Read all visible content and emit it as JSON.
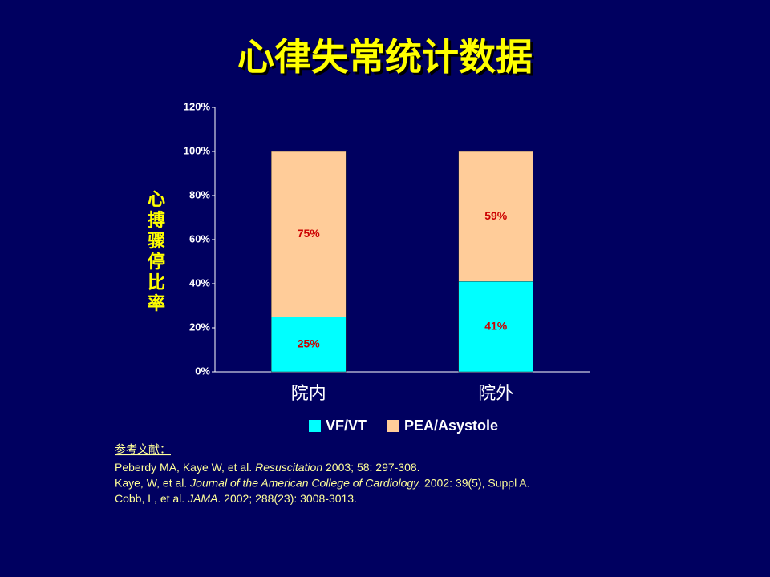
{
  "chart_data": {
    "type": "stacked_bar",
    "title": "心律失常统计数据",
    "ylabel": "心搏骤停比率",
    "categories": [
      "院内",
      "院外"
    ],
    "series": [
      {
        "name": "VF/VT",
        "color": "#00ffff",
        "values": [
          25,
          41
        ],
        "value_labels": [
          "25%",
          "41%"
        ]
      },
      {
        "name": "PEA/Asystole",
        "color": "#ffcc99",
        "values": [
          75,
          59
        ],
        "value_labels": [
          "75%",
          "59%"
        ]
      }
    ],
    "ylim": [
      0,
      120
    ],
    "yticks": [
      {
        "value": 0,
        "label": "0%"
      },
      {
        "value": 20,
        "label": "20%"
      },
      {
        "value": 40,
        "label": "40%"
      },
      {
        "value": 60,
        "label": "60%"
      },
      {
        "value": 80,
        "label": "80%"
      },
      {
        "value": 100,
        "label": "100%"
      },
      {
        "value": 120,
        "label": "120%"
      }
    ],
    "label_color": "#cc0000",
    "legend": "bottom"
  },
  "references": {
    "heading": "参考文献：",
    "lines": [
      [
        {
          "text": "Peberdy MA, Kaye W, et al. ",
          "italic": false
        },
        {
          "text": "Resuscitation",
          "italic": true
        },
        {
          "text": " 2003; 58: 297-308.",
          "italic": false
        }
      ],
      [
        {
          "text": "Kaye, W, et al. ",
          "italic": false
        },
        {
          "text": "Journal of the American College of Cardiology.",
          "italic": true
        },
        {
          "text": " 2002: 39(5), Suppl A.",
          "italic": false
        }
      ],
      [
        {
          "text": "Cobb, L, et al. ",
          "italic": false
        },
        {
          "text": "JAMA",
          "italic": true
        },
        {
          "text": ". 2002; 288(23): 3008-3013.",
          "italic": false
        }
      ]
    ]
  }
}
